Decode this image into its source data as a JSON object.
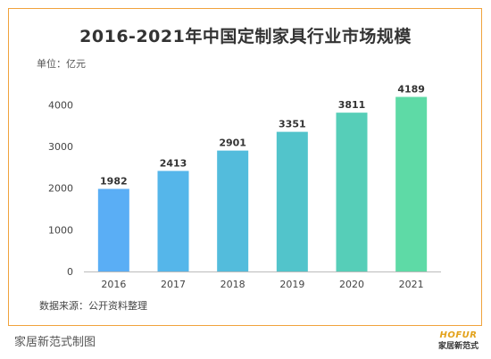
{
  "chart_data": {
    "type": "bar",
    "title": "2016-2021年中国定制家具行业市场规模",
    "unit_label": "单位：亿元",
    "categories": [
      "2016",
      "2017",
      "2018",
      "2019",
      "2020",
      "2021"
    ],
    "values": [
      1982,
      2413,
      2901,
      3351,
      3811,
      4189
    ],
    "ylim": [
      0,
      4500
    ],
    "yticks": [
      0,
      1000,
      2000,
      3000,
      4000
    ],
    "bar_colors": [
      "#5aaef5",
      "#55b6ea",
      "#53bcdc",
      "#52c4cb",
      "#56ceb8",
      "#5edaa6"
    ],
    "grid": false,
    "source": "数据来源：公开资料整理"
  },
  "footer": {
    "caption": "家居新范式制图",
    "logo_top": "HOFUR",
    "logo_bottom": "家居新范式"
  }
}
